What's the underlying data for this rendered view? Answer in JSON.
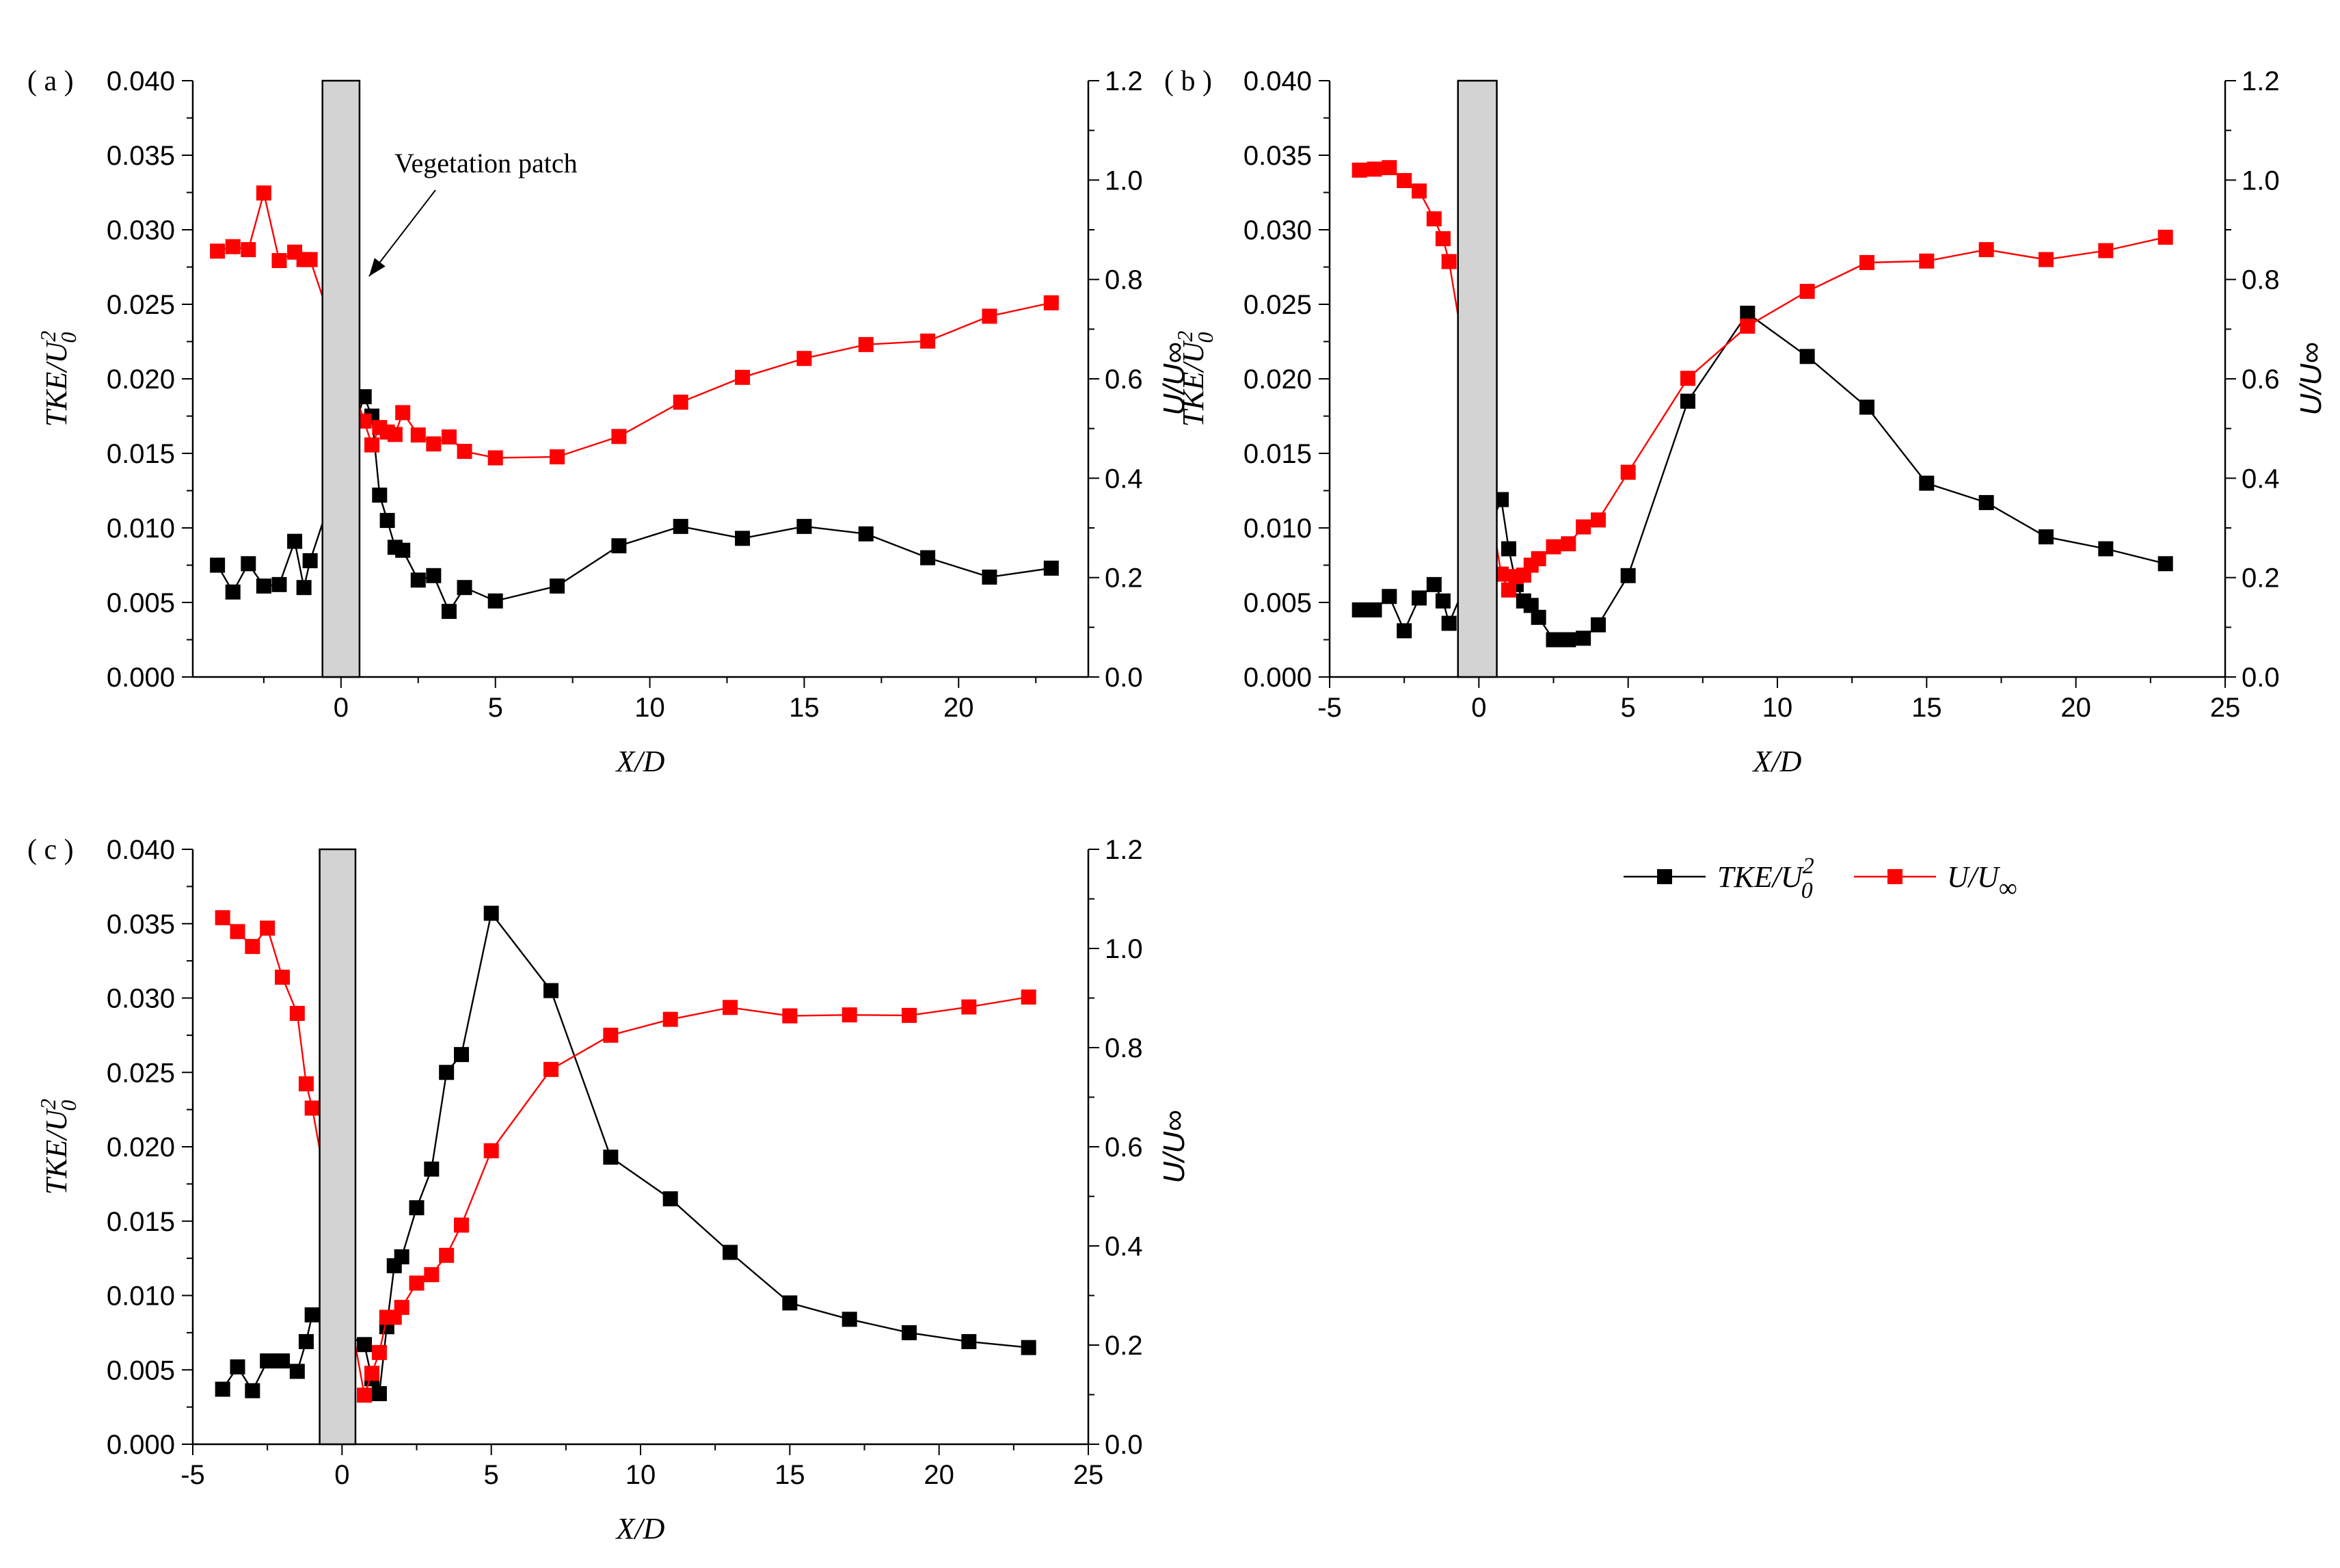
{
  "legend": {
    "tke_label": "TKE/U",
    "tke_sup": "2",
    "tke_sub": "0",
    "u_label": "U/U",
    "u_sub": "∞",
    "tke_color": "#000000",
    "u_color": "#ff0000"
  },
  "chart_data": [
    {
      "type": "line",
      "panel_label": "( a )",
      "annotation": "Vegetation patch",
      "xlabel": "X/D",
      "ylabel_left": "TKE/U",
      "ylabel_left_sup": "2",
      "ylabel_left_sub": "0",
      "ylabel_right": "U/U∞",
      "xlim": [
        -4.8,
        24.2
      ],
      "ylim_left": [
        0,
        0.04
      ],
      "ylim_right": [
        0,
        1.2
      ],
      "xticks": [
        0,
        5,
        10,
        15,
        20
      ],
      "xtick_labels": [
        "0",
        "5",
        "10",
        "15",
        "20"
      ],
      "yticks_left": [
        "0.000",
        "0.005",
        "0.010",
        "0.015",
        "0.020",
        "0.025",
        "0.030",
        "0.035",
        "0.040"
      ],
      "yticks_right": [
        "0.0",
        "0.2",
        "0.4",
        "0.6",
        "0.8",
        "1.0",
        "1.2"
      ],
      "patch": [
        -0.6,
        0.6
      ],
      "series": [
        {
          "name": "TKE/U0^2",
          "axis": "left",
          "color": "#000000",
          "x": [
            -4,
            -3.5,
            -3,
            -2.5,
            -2,
            -1.5,
            -1.2,
            -1,
            0.75,
            1,
            1.25,
            1.5,
            1.75,
            2,
            2.5,
            3,
            3.5,
            4,
            5,
            7,
            9,
            11,
            13,
            15,
            17,
            19,
            21,
            23
          ],
          "y": [
            0.0075,
            0.0057,
            0.0076,
            0.0061,
            0.0062,
            0.0091,
            0.006,
            0.0078,
            0.0188,
            0.0175,
            0.0122,
            0.0105,
            0.0087,
            0.0085,
            0.0065,
            0.0068,
            0.0044,
            0.006,
            0.0051,
            0.0061,
            0.0088,
            0.0101,
            0.0093,
            0.0101,
            0.0096,
            0.008,
            0.0067,
            0.0073
          ]
        },
        {
          "name": "U/Uinf",
          "axis": "right",
          "color": "#ff0000",
          "x": [
            -4,
            -3.5,
            -3,
            -2.5,
            -2,
            -1.5,
            -1.2,
            -1,
            0.75,
            1,
            1.25,
            1.5,
            1.75,
            2,
            2.5,
            3,
            3.5,
            4,
            5,
            7,
            9,
            11,
            13,
            15,
            17,
            19,
            21,
            23
          ],
          "y": [
            0.857,
            0.866,
            0.86,
            0.974,
            0.838,
            0.855,
            0.84,
            0.84,
            0.515,
            0.467,
            0.502,
            0.493,
            0.488,
            0.532,
            0.487,
            0.469,
            0.483,
            0.454,
            0.441,
            0.443,
            0.484,
            0.553,
            0.603,
            0.641,
            0.669,
            0.676,
            0.726,
            0.753
          ]
        }
      ]
    },
    {
      "type": "line",
      "panel_label": "( b )",
      "xlabel": "X/D",
      "ylabel_left": "TKE/U",
      "ylabel_left_sup": "2",
      "ylabel_left_sub": "0",
      "ylabel_right": "U/U∞",
      "xlim": [
        -5,
        25
      ],
      "ylim_left": [
        0,
        0.04
      ],
      "ylim_right": [
        0,
        1.2
      ],
      "xticks": [
        -5,
        0,
        5,
        10,
        15,
        20,
        25
      ],
      "xtick_labels": [
        "-5",
        "0",
        "5",
        "10",
        "15",
        "20",
        "25"
      ],
      "yticks_left": [
        "0.000",
        "0.005",
        "0.010",
        "0.015",
        "0.020",
        "0.025",
        "0.030",
        "0.035",
        "0.040"
      ],
      "yticks_right": [
        "0.0",
        "0.2",
        "0.4",
        "0.6",
        "0.8",
        "1.0",
        "1.2"
      ],
      "patch": [
        -0.7,
        0.6
      ],
      "series": [
        {
          "name": "TKE/U0^2",
          "axis": "left",
          "color": "#000000",
          "x": [
            -4,
            -3.5,
            -3,
            -2.5,
            -2,
            -1.5,
            -1.2,
            -1,
            0.75,
            1,
            1.25,
            1.5,
            1.75,
            2,
            2.5,
            3,
            3.5,
            4,
            5,
            7,
            9,
            11,
            13,
            15,
            17,
            19,
            21,
            23
          ],
          "y": [
            0.0045,
            0.0045,
            0.0054,
            0.0031,
            0.0053,
            0.0062,
            0.0051,
            0.0036,
            0.0119,
            0.0086,
            0.0062,
            0.0051,
            0.0048,
            0.004,
            0.0025,
            0.0025,
            0.0026,
            0.0035,
            0.0068,
            0.0185,
            0.0244,
            0.0215,
            0.0181,
            0.013,
            0.0117,
            0.0094,
            0.0086,
            0.0076
          ]
        },
        {
          "name": "U/Uinf",
          "axis": "right",
          "color": "#ff0000",
          "x": [
            -4,
            -3.5,
            -3,
            -2.5,
            -2,
            -1.5,
            -1.2,
            -1,
            0.75,
            1,
            1.25,
            1.5,
            1.75,
            2,
            2.5,
            3,
            3.5,
            4,
            5,
            7,
            9,
            11,
            13,
            15,
            17,
            19,
            21,
            23
          ],
          "y": [
            1.02,
            1.022,
            1.025,
            0.999,
            0.978,
            0.922,
            0.882,
            0.836,
            0.207,
            0.175,
            0.202,
            0.205,
            0.225,
            0.238,
            0.262,
            0.268,
            0.302,
            0.316,
            0.412,
            0.601,
            0.706,
            0.776,
            0.834,
            0.837,
            0.86,
            0.84,
            0.858,
            0.885
          ]
        }
      ]
    },
    {
      "type": "line",
      "panel_label": "( c )",
      "xlabel": "X/D",
      "ylabel_left": "TKE/U",
      "ylabel_left_sup": "2",
      "ylabel_left_sub": "0",
      "ylabel_right": "U/U∞",
      "xlim": [
        -5,
        25
      ],
      "ylim_left": [
        0,
        0.04
      ],
      "ylim_right": [
        0,
        1.2
      ],
      "xticks": [
        -5,
        0,
        5,
        10,
        15,
        20,
        25
      ],
      "xtick_labels": [
        "-5",
        "0",
        "5",
        "10",
        "15",
        "20",
        "25"
      ],
      "yticks_left": [
        "0.000",
        "0.005",
        "0.010",
        "0.015",
        "0.020",
        "0.025",
        "0.030",
        "0.035",
        "0.040"
      ],
      "yticks_right": [
        "0.0",
        "0.2",
        "0.4",
        "0.6",
        "0.8",
        "1.0",
        "1.2"
      ],
      "patch": [
        -0.75,
        0.45
      ],
      "series": [
        {
          "name": "TKE/U0^2",
          "axis": "left",
          "color": "#000000",
          "x": [
            -4,
            -3.5,
            -3,
            -2.5,
            -2,
            -1.5,
            -1.2,
            -1,
            0.75,
            1,
            1.25,
            1.5,
            1.75,
            2,
            2.5,
            3,
            3.5,
            4,
            5,
            7,
            9,
            11,
            13,
            15,
            17,
            19,
            21,
            23
          ],
          "y": [
            0.0037,
            0.0052,
            0.0036,
            0.0056,
            0.0056,
            0.0049,
            0.0069,
            0.0087,
            0.0067,
            0.0044,
            0.0034,
            0.0079,
            0.012,
            0.0126,
            0.0159,
            0.0185,
            0.025,
            0.0262,
            0.0357,
            0.0305,
            0.0193,
            0.0165,
            0.0129,
            0.0095,
            0.0084,
            0.0075,
            0.0069,
            0.0065
          ]
        },
        {
          "name": "U/Uinf",
          "axis": "right",
          "color": "#ff0000",
          "x": [
            -4,
            -3.5,
            -3,
            -2.5,
            -2,
            -1.5,
            -1.2,
            -1,
            0.75,
            1,
            1.25,
            1.5,
            1.75,
            2,
            2.5,
            3,
            3.5,
            4,
            5,
            7,
            9,
            11,
            13,
            15,
            17,
            19,
            21,
            23
          ],
          "y": [
            1.062,
            1.034,
            1.004,
            1.041,
            0.942,
            0.869,
            0.727,
            0.678,
            0.099,
            0.143,
            0.185,
            0.256,
            0.256,
            0.276,
            0.325,
            0.342,
            0.381,
            0.442,
            0.592,
            0.756,
            0.825,
            0.857,
            0.881,
            0.864,
            0.866,
            0.865,
            0.882,
            0.902
          ]
        }
      ]
    }
  ]
}
